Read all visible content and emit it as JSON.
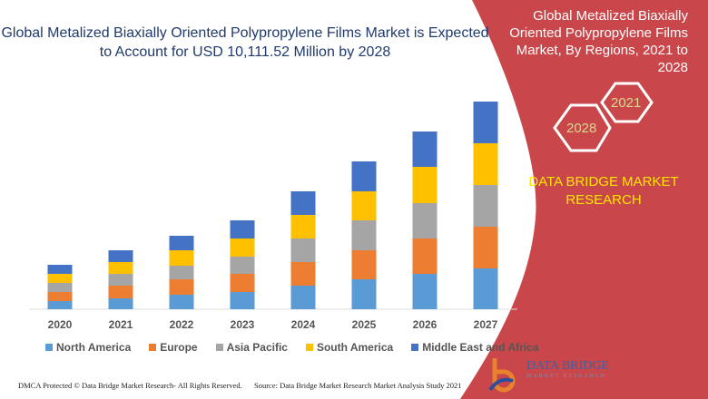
{
  "header": {
    "title": "Global Metalized Biaxially Oriented Polypropylene Films Market is Expected to Account for USD 10,111.52 Million by 2028"
  },
  "side": {
    "title": "Global Metalized Biaxially Oriented Polypropylene Films Market, By Regions, 2021 to 2028",
    "hex1": "2021",
    "hex2": "2028",
    "brand": "DATA BRIDGE MARKET RESEARCH",
    "accent": "#c9474a"
  },
  "footer": {
    "dmca": "DMCA Protected © Data Bridge Market Research- All Rights Reserved.",
    "source": "Source: Data Bridge Market Research Market Analysis Study 2021",
    "logo": "DATA BRIDGE",
    "logo_sub": "MARKET RESEARCH"
  },
  "chart_data": {
    "type": "bar",
    "stacked": true,
    "title": "",
    "xlabel": "",
    "ylabel": "",
    "grid": false,
    "legend": "bottom",
    "categories": [
      "2020",
      "2021",
      "2022",
      "2023",
      "2024",
      "2025",
      "2026",
      "2027"
    ],
    "series": [
      {
        "name": "North America",
        "color": "#5b9bd5",
        "values": [
          9,
          12,
          16,
          19,
          26,
          33,
          39,
          45
        ]
      },
      {
        "name": "Europe",
        "color": "#ed7d31",
        "values": [
          10,
          14,
          17,
          20,
          26,
          32,
          39,
          46
        ]
      },
      {
        "name": "Asia Pacific",
        "color": "#a5a5a5",
        "values": [
          10,
          13,
          15,
          19,
          26,
          33,
          39,
          46
        ]
      },
      {
        "name": "South America",
        "color": "#ffc000",
        "values": [
          10,
          13,
          17,
          20,
          26,
          32,
          40,
          46
        ]
      },
      {
        "name": "Middle East and Africa",
        "color": "#4472c4",
        "values": [
          10,
          13,
          16,
          20,
          26,
          33,
          39,
          46
        ]
      }
    ]
  }
}
